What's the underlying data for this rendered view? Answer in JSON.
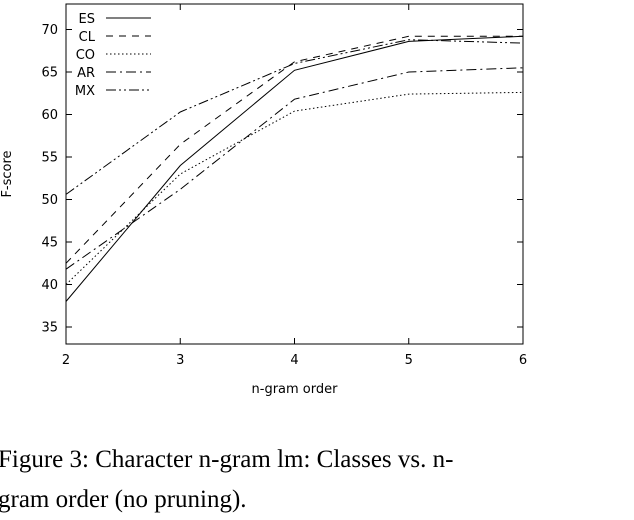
{
  "caption": {
    "line1": "Figure 3:  Character n-gram lm:  Classes vs. n-",
    "line2": "gram order (no pruning)."
  },
  "chart_data": {
    "type": "line",
    "title": "",
    "xlabel": "n-gram order",
    "ylabel": "F-score",
    "x": [
      2,
      3,
      4,
      5,
      6
    ],
    "xlim": [
      2,
      6
    ],
    "ylim": [
      33,
      73
    ],
    "xticks": [
      "2",
      "3",
      "4",
      "5",
      "6"
    ],
    "yticks": [
      "35",
      "40",
      "45",
      "50",
      "55",
      "60",
      "65",
      "70"
    ],
    "grid": false,
    "legend_position": "top-left",
    "series": [
      {
        "name": "ES",
        "values": [
          38.0,
          54.0,
          65.2,
          68.6,
          69.2
        ],
        "dash": "solid",
        "color": "#000000"
      },
      {
        "name": "CL",
        "values": [
          42.5,
          56.5,
          66.2,
          69.2,
          69.2
        ],
        "dash": "dashed",
        "color": "#000000"
      },
      {
        "name": "CO",
        "values": [
          40.0,
          53.0,
          60.4,
          62.4,
          62.6
        ],
        "dash": "dotted",
        "color": "#000000"
      },
      {
        "name": "AR",
        "values": [
          41.8,
          51.2,
          61.8,
          65.0,
          65.5
        ],
        "dash": "dash-dot",
        "color": "#000000"
      },
      {
        "name": "MX",
        "values": [
          50.6,
          60.3,
          66.0,
          68.8,
          68.4
        ],
        "dash": "dash-dot-dot",
        "color": "#000000"
      }
    ]
  }
}
